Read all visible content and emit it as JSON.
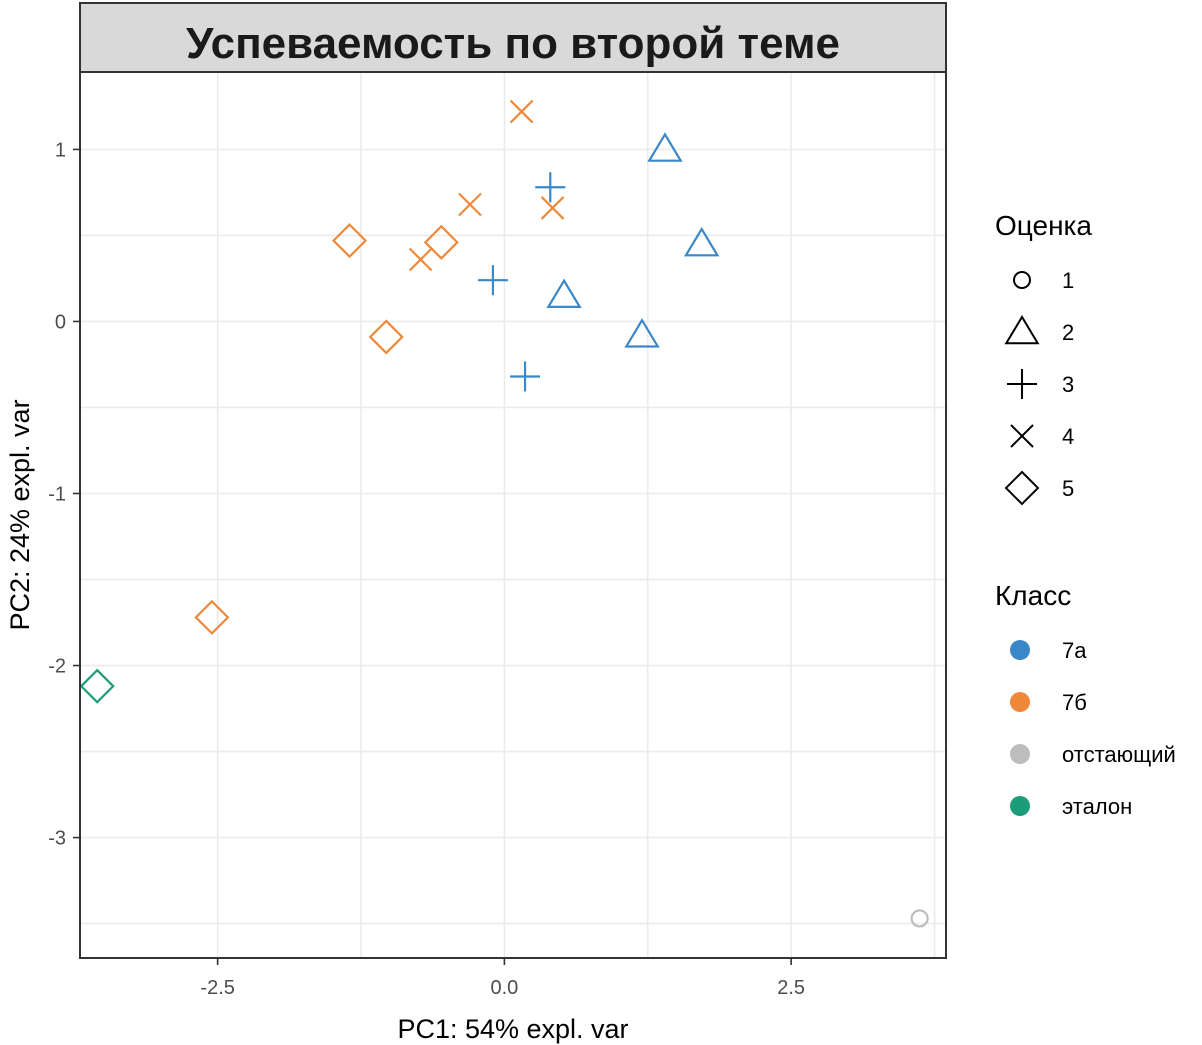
{
  "chart_data": {
    "type": "scatter",
    "title": "Успеваемость по второй теме",
    "xlabel": "PC1: 54% expl. var",
    "ylabel": "PC2: 24% expl. var",
    "xlim": [
      -3.7,
      3.85
    ],
    "ylim": [
      -3.7,
      1.45
    ],
    "x_ticks": [
      -2.5,
      0.0,
      2.5
    ],
    "x_tick_labels": [
      "-2.5",
      "0.0",
      "2.5"
    ],
    "y_ticks": [
      1,
      0,
      -1,
      -2,
      -3
    ],
    "y_tick_labels": [
      "1",
      "0",
      "-1",
      "-2",
      "-3"
    ],
    "grid": true,
    "legend_position": "right",
    "legend_shape": {
      "title": "Оценка",
      "items": [
        {
          "label": "1",
          "shape": "circle"
        },
        {
          "label": "2",
          "shape": "triangle"
        },
        {
          "label": "3",
          "shape": "plus"
        },
        {
          "label": "4",
          "shape": "cross"
        },
        {
          "label": "5",
          "shape": "diamond"
        }
      ]
    },
    "legend_color": {
      "title": "Класс",
      "items": [
        {
          "label": "7а",
          "color": "#3a87c9"
        },
        {
          "label": "7б",
          "color": "#f0883a"
        },
        {
          "label": "отстающий",
          "color": "#bdbdbd"
        },
        {
          "label": "эталон",
          "color": "#1b9e77"
        }
      ]
    },
    "points": [
      {
        "x": 0.15,
        "y": 1.22,
        "grade": "4",
        "class": "7б"
      },
      {
        "x": 1.4,
        "y": 1.0,
        "grade": "2",
        "class": "7а"
      },
      {
        "x": 0.4,
        "y": 0.78,
        "grade": "3",
        "class": "7а"
      },
      {
        "x": -0.3,
        "y": 0.68,
        "grade": "4",
        "class": "7б"
      },
      {
        "x": 0.42,
        "y": 0.66,
        "grade": "4",
        "class": "7б"
      },
      {
        "x": -1.35,
        "y": 0.47,
        "grade": "5",
        "class": "7б"
      },
      {
        "x": -0.55,
        "y": 0.46,
        "grade": "5",
        "class": "7б"
      },
      {
        "x": 1.72,
        "y": 0.45,
        "grade": "2",
        "class": "7а"
      },
      {
        "x": -0.73,
        "y": 0.36,
        "grade": "4",
        "class": "7б"
      },
      {
        "x": -0.1,
        "y": 0.24,
        "grade": "3",
        "class": "7а"
      },
      {
        "x": 0.52,
        "y": 0.15,
        "grade": "2",
        "class": "7а"
      },
      {
        "x": -1.03,
        "y": -0.09,
        "grade": "5",
        "class": "7б"
      },
      {
        "x": 1.2,
        "y": -0.08,
        "grade": "2",
        "class": "7а"
      },
      {
        "x": 0.18,
        "y": -0.32,
        "grade": "3",
        "class": "7а"
      },
      {
        "x": -2.55,
        "y": -1.72,
        "grade": "5",
        "class": "7б"
      },
      {
        "x": -3.55,
        "y": -2.12,
        "grade": "5",
        "class": "эталон"
      },
      {
        "x": 3.62,
        "y": -3.47,
        "grade": "1",
        "class": "отстающий"
      }
    ]
  }
}
